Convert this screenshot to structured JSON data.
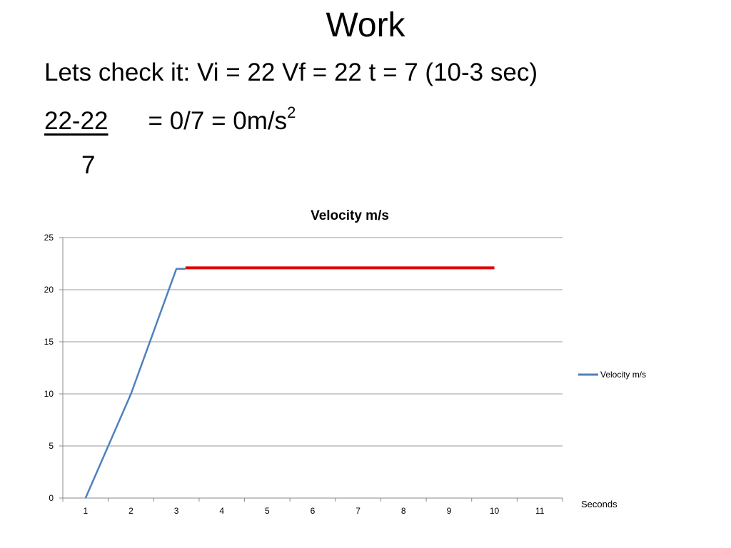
{
  "slide": {
    "title": "Work",
    "line1": "Lets check it: Vi = 22  Vf = 22  t = 7 (10-3 sec)",
    "numerator": "22-22",
    "equals_text": "=  0/7 = 0m/s",
    "superscript": "2",
    "denominator": "7"
  },
  "chart_data": {
    "type": "line",
    "title": "Velocity  m/s",
    "xlabel": "Seconds",
    "ylabel": "",
    "categories": [
      "1",
      "2",
      "3",
      "4",
      "5",
      "6",
      "7",
      "8",
      "9",
      "10",
      "11"
    ],
    "ylim": [
      0,
      25
    ],
    "yticks": [
      0,
      5,
      10,
      15,
      20,
      25
    ],
    "grid": true,
    "legend_position": "right",
    "series": [
      {
        "name": "Velocity  m/s",
        "color": "#4f81bd",
        "points": [
          [
            1,
            0
          ],
          [
            2,
            10
          ],
          [
            3,
            22
          ],
          [
            3.2,
            22
          ]
        ]
      }
    ],
    "annotations": [
      {
        "kind": "highlight-line",
        "color": "#e00000",
        "points": [
          [
            3.2,
            22.1
          ],
          [
            10,
            22.1
          ]
        ]
      }
    ]
  }
}
